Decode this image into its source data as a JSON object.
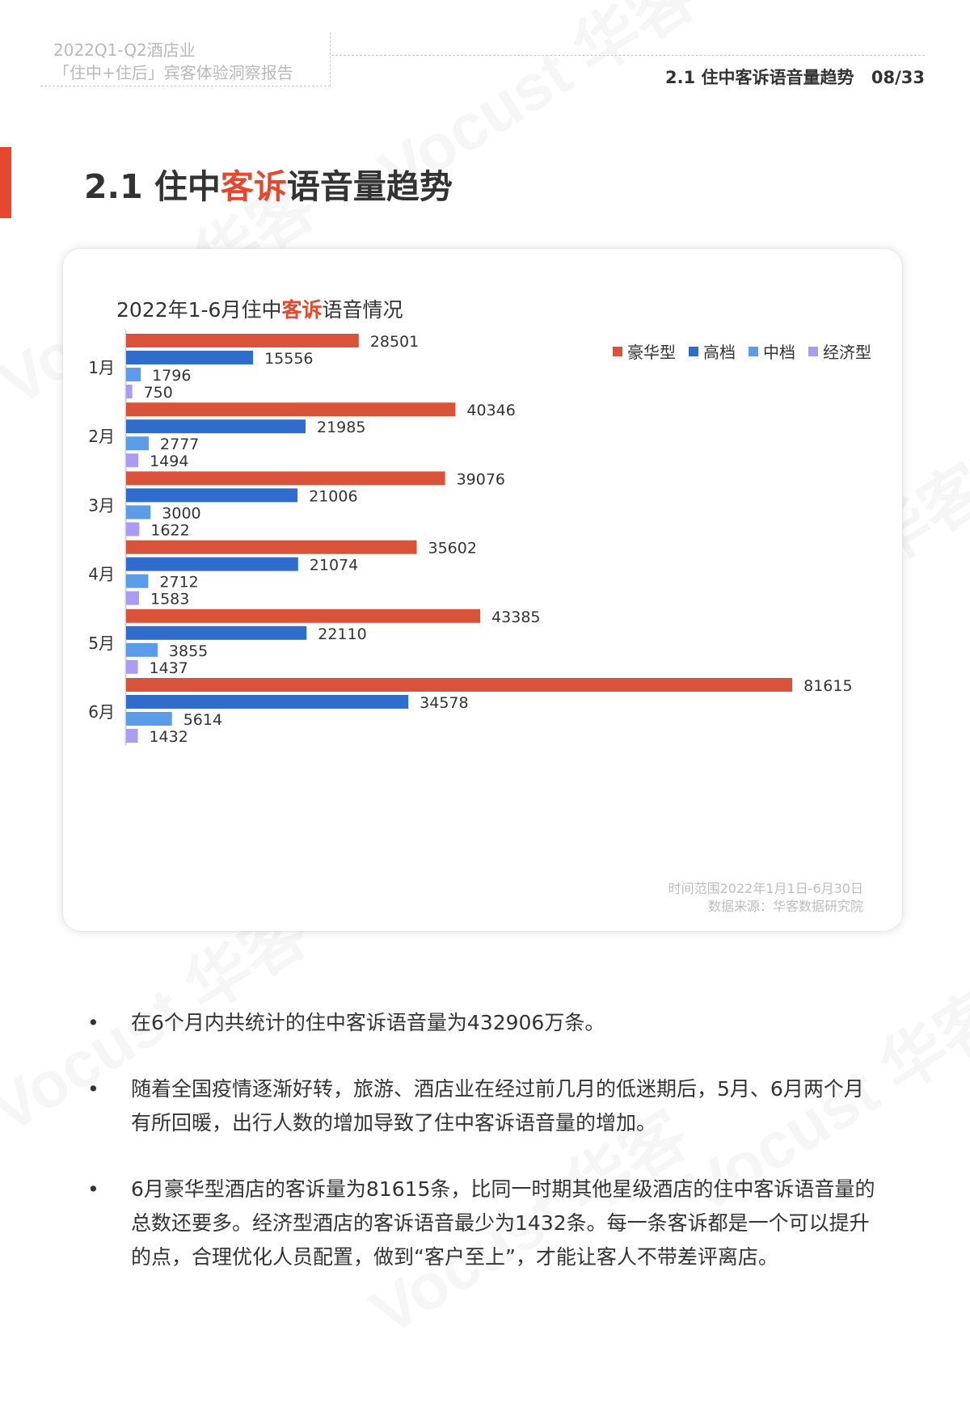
{
  "header": {
    "report_title_line1": "2022Q1-Q2酒店业",
    "report_title_line2": "「住中+住后」宾客体验洞察报告",
    "section_ref": "2.1 住中客诉语音量趋势",
    "page_number": "08/33"
  },
  "section": {
    "heading_pre": "2.1 住中",
    "heading_highlight": "客诉",
    "heading_post": "语音量趋势"
  },
  "chart": {
    "title_pre": "2022年1-6月住中",
    "title_highlight": "客诉",
    "title_post": "语音情况",
    "note_time": "时间范围2022年1月1日-6月30日",
    "note_source": "数据来源：华客数据研究院"
  },
  "watermark_text": "Vocust 华客",
  "colors": {
    "accent": "#e8472d",
    "luxury": "#d9533a",
    "high": "#2f6ccc",
    "mid": "#5b9be8",
    "economy": "#a99cf2"
  },
  "chart_data": {
    "type": "bar",
    "orientation": "horizontal",
    "categories": [
      "1月",
      "2月",
      "3月",
      "4月",
      "5月",
      "6月"
    ],
    "series": [
      {
        "name": "豪华型",
        "values": [
          28501,
          40346,
          39076,
          35602,
          43385,
          81615
        ]
      },
      {
        "name": "高档",
        "values": [
          15556,
          21985,
          21006,
          21074,
          22110,
          34578
        ]
      },
      {
        "name": "中档",
        "values": [
          1796,
          2777,
          3000,
          2712,
          3855,
          5614
        ]
      },
      {
        "name": "经济型",
        "values": [
          750,
          1494,
          1622,
          1583,
          1437,
          1432
        ]
      }
    ],
    "legend_position": "top-right",
    "xlim": [
      0,
      82000
    ],
    "grid": false
  },
  "bullets": [
    "在6个月内共统计的住中客诉语音量为432906万条。",
    "随着全国疫情逐渐好转，旅游、酒店业在经过前几月的低迷期后，5月、6月两个月有所回暖，出行人数的增加导致了住中客诉语音量的增加。",
    "6月豪华型酒店的客诉量为81615条，比同一时期其他星级酒店的住中客诉语音量的总数还要多。经济型酒店的客诉语音最少为1432条。每一条客诉都是一个可以提升的点，合理优化人员配置，做到“客户至上”，才能让客人不带差评离店。"
  ]
}
